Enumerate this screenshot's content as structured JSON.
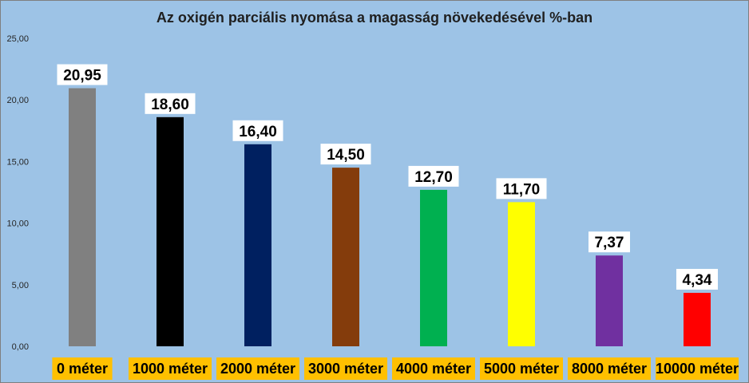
{
  "chart_data": {
    "type": "bar",
    "title": "Az oxigén parciális nyomása a magasság növekedésével %-ban",
    "categories": [
      "0 méter",
      "1000 méter",
      "2000 méter",
      "3000 méter",
      "4000 méter",
      "5000 méter",
      "8000 méter",
      "10000 méter"
    ],
    "values": [
      20.95,
      18.6,
      16.4,
      14.5,
      12.7,
      11.7,
      7.37,
      4.34
    ],
    "value_labels": [
      "20,95",
      "18,60",
      "16,40",
      "14,50",
      "12,70",
      "11,70",
      "7,37",
      "4,34"
    ],
    "bar_colors": [
      "#808080",
      "#000000",
      "#002060",
      "#843c0c",
      "#00b050",
      "#ffff00",
      "#7030a0",
      "#ff0000"
    ],
    "ylim": [
      0,
      25
    ],
    "yticks": [
      0,
      5,
      10,
      15,
      20,
      25
    ],
    "ytick_labels": [
      "0,00",
      "5,00",
      "10,00",
      "15,00",
      "20,00",
      "25,00"
    ],
    "xlabel": "",
    "ylabel": "",
    "grid": false,
    "legend": "none",
    "background_color": "#9dc3e6",
    "category_label_background": "#ffc000",
    "value_label_background": "#ffffff"
  }
}
